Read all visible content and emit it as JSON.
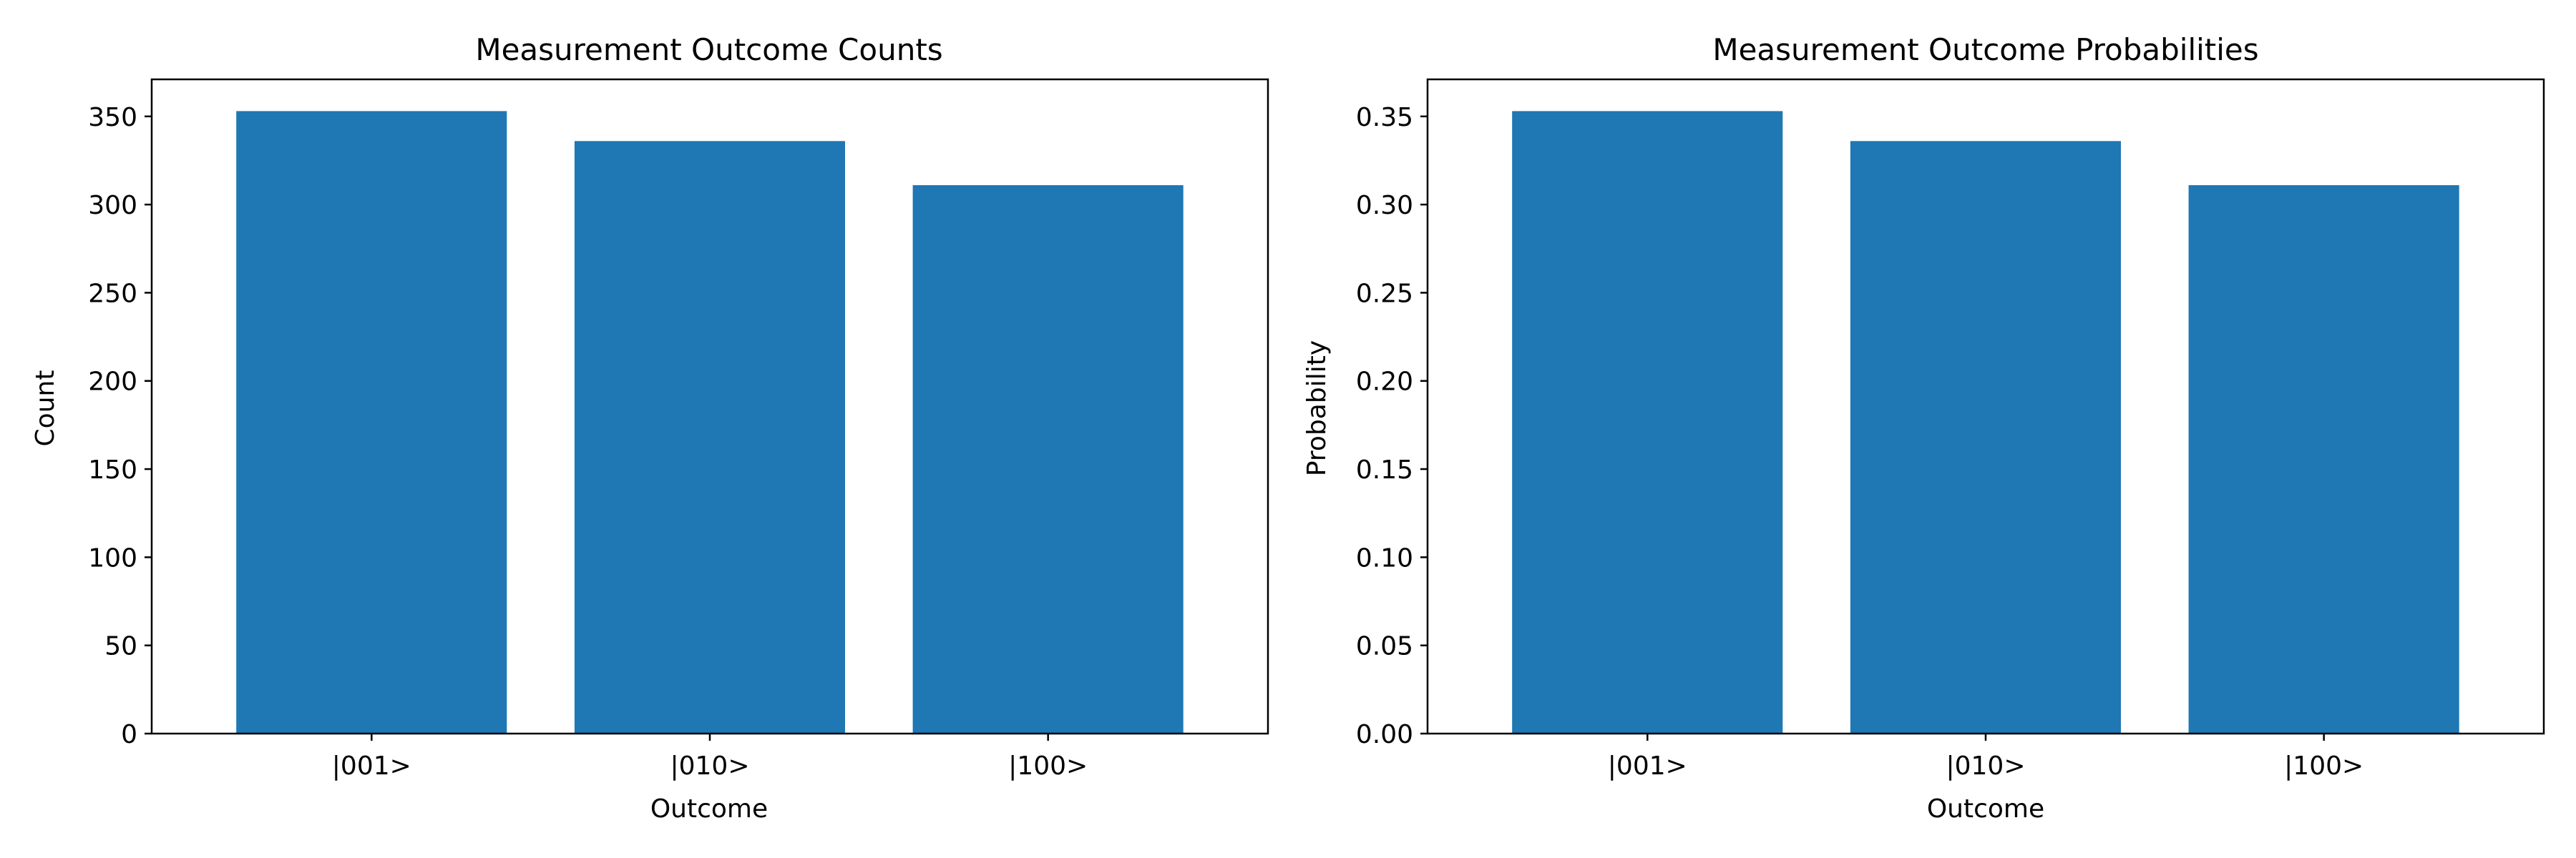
{
  "chart_data": [
    {
      "type": "bar",
      "title": "Measurement Outcome Counts",
      "xlabel": "Outcome",
      "ylabel": "Count",
      "categories": [
        "|001>",
        "|010>",
        "|100>"
      ],
      "values": [
        353,
        336,
        311
      ],
      "ylim": [
        0,
        371
      ],
      "yticks": [
        "0",
        "50",
        "100",
        "150",
        "200",
        "250",
        "300",
        "350"
      ],
      "ytick_values": [
        0,
        50,
        100,
        150,
        200,
        250,
        300,
        350
      ],
      "grid": false,
      "bar_color": "#1f77b4"
    },
    {
      "type": "bar",
      "title": "Measurement Outcome Probabilities",
      "xlabel": "Outcome",
      "ylabel": "Probability",
      "categories": [
        "|001>",
        "|010>",
        "|100>"
      ],
      "values": [
        0.353,
        0.336,
        0.311
      ],
      "ylim": [
        0,
        0.371
      ],
      "yticks": [
        "0.00",
        "0.05",
        "0.10",
        "0.15",
        "0.20",
        "0.25",
        "0.30",
        "0.35"
      ],
      "ytick_values": [
        0,
        0.05,
        0.1,
        0.15,
        0.2,
        0.25,
        0.3,
        0.35
      ],
      "grid": false,
      "bar_color": "#1f77b4"
    }
  ]
}
